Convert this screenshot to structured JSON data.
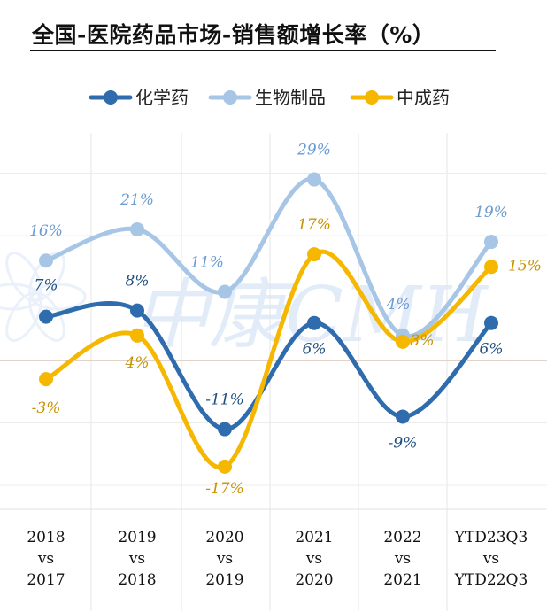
{
  "chart_data": {
    "type": "line",
    "title": "全国-医院药品市场-销售额增长率（%）",
    "categories": [
      [
        "2018",
        "vs",
        "2017"
      ],
      [
        "2019",
        "vs",
        "2018"
      ],
      [
        "2020",
        "vs",
        "2019"
      ],
      [
        "2021",
        "vs",
        "2020"
      ],
      [
        "2022",
        "vs",
        "2021"
      ],
      [
        "YTD23Q3",
        "vs",
        "YTD22Q3"
      ]
    ],
    "series": [
      {
        "name": "化学药",
        "color": "#2e6cae",
        "values": [
          7,
          8,
          -11,
          6,
          -9,
          6
        ]
      },
      {
        "name": "生物制品",
        "color": "#a7c6e6",
        "values": [
          16,
          21,
          11,
          29,
          4,
          19
        ]
      },
      {
        "name": "中成药",
        "color": "#f5b700",
        "values": [
          -3,
          4,
          -17,
          17,
          3,
          15
        ]
      }
    ],
    "labels": {
      "化学药": [
        "7%",
        "8%",
        "-11%",
        "6%",
        "-9%",
        "6%"
      ],
      "生物制品": [
        "16%",
        "21%",
        "11%",
        "29%",
        "4%",
        "19%"
      ],
      "中成药": [
        "-3%",
        "4%",
        "-17%",
        "17%",
        "3%",
        "15%"
      ]
    },
    "label_colors": {
      "化学药": "#1f4e80",
      "生物制品": "#6b9bd0",
      "中成药": "#c89200"
    },
    "legend_position": "top",
    "grid": true,
    "watermark": "中康CMH"
  }
}
